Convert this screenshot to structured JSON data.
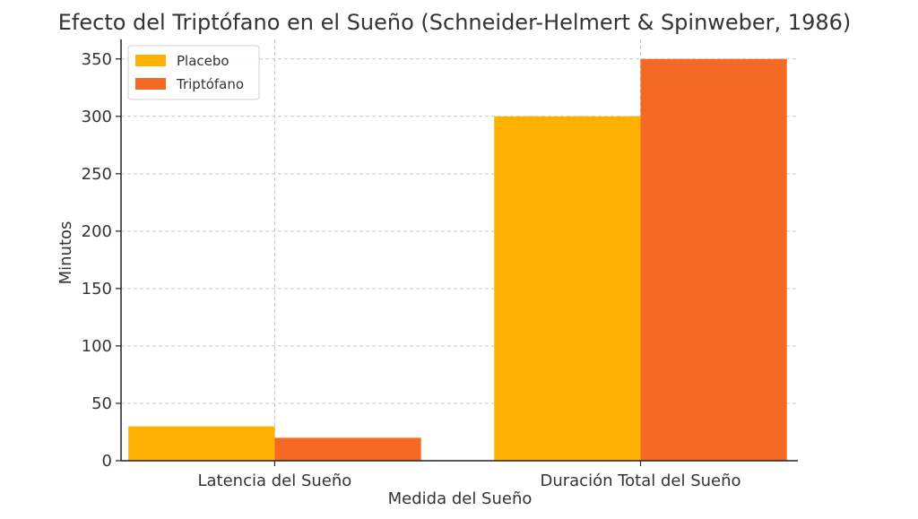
{
  "chart_data": {
    "type": "bar",
    "title": "Efecto del Triptófano en el Sueño (Schneider-Helmert & Spinweber, 1986)",
    "xlabel": "Medida del Sueño",
    "ylabel": "Minutos",
    "categories": [
      "Latencia del Sueño",
      "Duración Total del Sueño"
    ],
    "series": [
      {
        "name": "Placebo",
        "values": [
          30,
          300
        ],
        "color": "#ffb000"
      },
      {
        "name": "Triptófano",
        "values": [
          20,
          350
        ],
        "color": "#f46a25"
      }
    ],
    "ylim": [
      0,
      367
    ],
    "yticks": [
      0,
      50,
      100,
      150,
      200,
      250,
      300,
      350
    ],
    "grid": true,
    "legend_position": "top-left"
  }
}
